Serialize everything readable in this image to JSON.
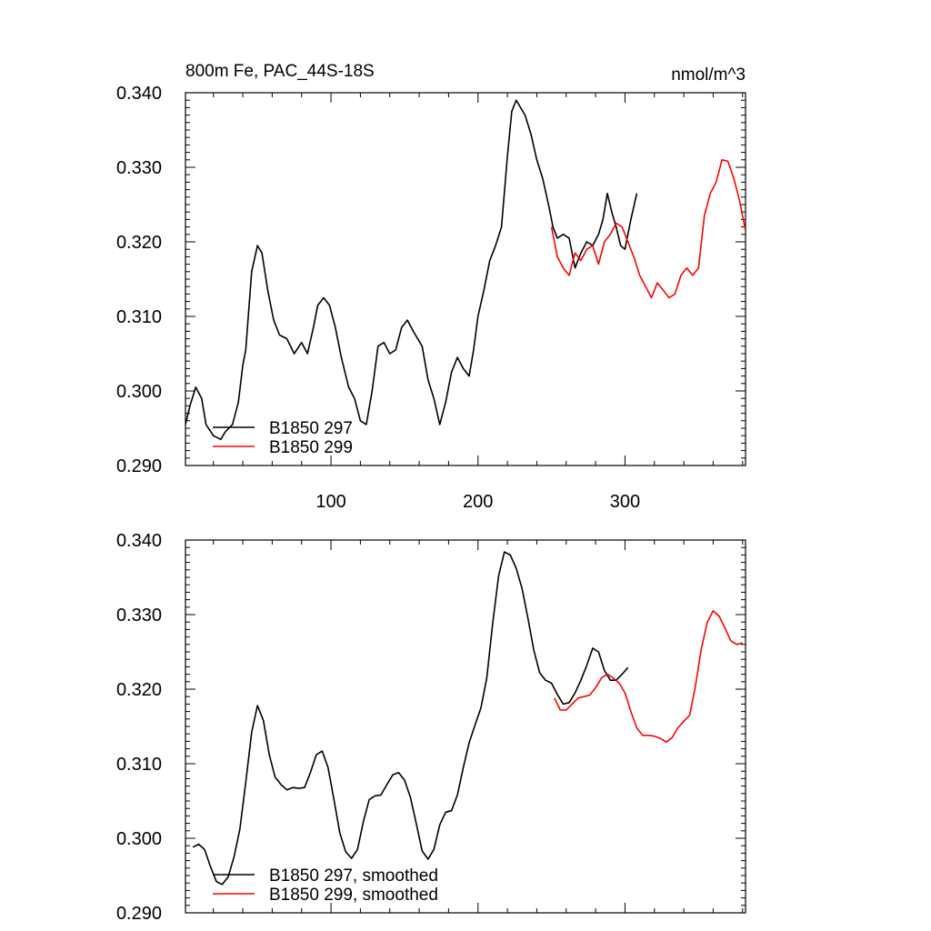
{
  "figure": {
    "title_left": "800m Fe, PAC_44S-18S",
    "title_right": "nmol/m^3",
    "colors": {
      "series_297": "#000000",
      "series_299": "#ff0000",
      "axis": "#000000",
      "background": "#ffffff"
    }
  },
  "chart_data": [
    {
      "type": "line",
      "title": "800m Fe, PAC_44S-18S",
      "units": "nmol/m^3",
      "xlim": [
        1,
        382
      ],
      "ylim": [
        0.29,
        0.34
      ],
      "x_ticks": [
        100,
        200,
        300
      ],
      "x_tick_labels": [
        "100",
        "200",
        "300"
      ],
      "y_ticks": [
        0.29,
        0.3,
        0.31,
        0.32,
        0.33,
        0.34
      ],
      "y_tick_labels": [
        "0.290",
        "0.300",
        "0.310",
        "0.320",
        "0.330",
        "0.340"
      ],
      "grid": false,
      "legend_position": "bottom-left",
      "series": [
        {
          "name": "B1850 297",
          "color": "#000000",
          "x": [
            1,
            4,
            8,
            12,
            15,
            20,
            25,
            28,
            33,
            37,
            40,
            42,
            46,
            50,
            53,
            57,
            61,
            65,
            70,
            75,
            80,
            84,
            88,
            91,
            95,
            99,
            103,
            107,
            112,
            116,
            120,
            124,
            128,
            132,
            136,
            140,
            144,
            148,
            152,
            156,
            162,
            166,
            170,
            174,
            178,
            182,
            186,
            190,
            194,
            197,
            200,
            204,
            208,
            212,
            216,
            220,
            223,
            226,
            229,
            232,
            236,
            240,
            244,
            248,
            251,
            254,
            258,
            262,
            266,
            270,
            274,
            278,
            282,
            285,
            288,
            291,
            294,
            297,
            300,
            304,
            308
          ],
          "values": [
            0.2955,
            0.298,
            0.3005,
            0.299,
            0.2955,
            0.294,
            0.2935,
            0.2945,
            0.2955,
            0.2985,
            0.3035,
            0.3055,
            0.316,
            0.3195,
            0.3185,
            0.3135,
            0.3095,
            0.3075,
            0.307,
            0.305,
            0.3065,
            0.305,
            0.3085,
            0.3115,
            0.3125,
            0.3115,
            0.3085,
            0.3045,
            0.3005,
            0.299,
            0.296,
            0.2955,
            0.3,
            0.306,
            0.3065,
            0.305,
            0.3055,
            0.3085,
            0.3095,
            0.308,
            0.306,
            0.3015,
            0.299,
            0.2955,
            0.2985,
            0.3025,
            0.3045,
            0.303,
            0.302,
            0.3055,
            0.31,
            0.3135,
            0.3175,
            0.3195,
            0.322,
            0.3315,
            0.3375,
            0.339,
            0.338,
            0.337,
            0.3345,
            0.331,
            0.3285,
            0.325,
            0.322,
            0.3205,
            0.321,
            0.3205,
            0.3165,
            0.3185,
            0.32,
            0.3195,
            0.321,
            0.323,
            0.3265,
            0.324,
            0.322,
            0.3195,
            0.319,
            0.323,
            0.3265
          ]
        },
        {
          "name": "B1850 299",
          "color": "#ff0000",
          "x": [
            250,
            254,
            258,
            262,
            266,
            270,
            274,
            278,
            282,
            286,
            290,
            294,
            298,
            302,
            306,
            310,
            314,
            318,
            322,
            326,
            330,
            334,
            338,
            342,
            346,
            350,
            354,
            358,
            362,
            366,
            370,
            374,
            378,
            382
          ],
          "values": [
            0.322,
            0.318,
            0.3165,
            0.3155,
            0.3185,
            0.3175,
            0.319,
            0.3195,
            0.317,
            0.32,
            0.321,
            0.3225,
            0.322,
            0.32,
            0.318,
            0.3155,
            0.314,
            0.3125,
            0.3145,
            0.3135,
            0.3125,
            0.313,
            0.3155,
            0.3165,
            0.3155,
            0.3165,
            0.3235,
            0.3265,
            0.328,
            0.331,
            0.3308,
            0.3285,
            0.3255,
            0.3215
          ]
        }
      ]
    },
    {
      "type": "line",
      "xlim": [
        1,
        382
      ],
      "ylim": [
        0.29,
        0.34
      ],
      "x_ticks": [
        100,
        200,
        300
      ],
      "y_ticks": [
        0.29,
        0.3,
        0.31,
        0.32,
        0.33,
        0.34
      ],
      "y_tick_labels": [
        "0.290",
        "0.300",
        "0.310",
        "0.320",
        "0.330",
        "0.340"
      ],
      "grid": false,
      "legend_position": "bottom-left",
      "series": [
        {
          "name": "B1850 297, smoothed",
          "color": "#000000",
          "x": [
            6,
            10,
            14,
            18,
            22,
            26,
            30,
            34,
            38,
            42,
            46,
            50,
            54,
            58,
            62,
            66,
            70,
            74,
            78,
            82,
            86,
            90,
            94,
            98,
            102,
            106,
            110,
            114,
            118,
            122,
            126,
            130,
            134,
            138,
            142,
            146,
            150,
            154,
            158,
            162,
            166,
            170,
            174,
            178,
            182,
            186,
            190,
            194,
            198,
            202,
            206,
            210,
            214,
            218,
            222,
            226,
            230,
            234,
            238,
            242,
            246,
            250,
            254,
            258,
            262,
            266,
            270,
            274,
            278,
            282,
            286,
            290,
            294,
            298,
            302
          ],
          "values": [
            0.2988,
            0.2992,
            0.2985,
            0.2962,
            0.2942,
            0.2938,
            0.2948,
            0.2975,
            0.3012,
            0.3075,
            0.3142,
            0.3178,
            0.3158,
            0.3112,
            0.3082,
            0.3072,
            0.3065,
            0.3068,
            0.3067,
            0.3068,
            0.3088,
            0.3112,
            0.3117,
            0.3095,
            0.3052,
            0.3007,
            0.2982,
            0.2973,
            0.2985,
            0.3022,
            0.3052,
            0.3057,
            0.3058,
            0.3072,
            0.3085,
            0.3088,
            0.3078,
            0.3055,
            0.302,
            0.2983,
            0.2972,
            0.2985,
            0.3018,
            0.3035,
            0.3037,
            0.3058,
            0.3095,
            0.3128,
            0.3152,
            0.3175,
            0.3215,
            0.3288,
            0.3352,
            0.3384,
            0.338,
            0.3362,
            0.3335,
            0.3295,
            0.3252,
            0.3222,
            0.3212,
            0.3208,
            0.3193,
            0.318,
            0.3182,
            0.3195,
            0.3212,
            0.3232,
            0.3255,
            0.325,
            0.3225,
            0.3212,
            0.3212,
            0.322,
            0.3229
          ]
        },
        {
          "name": "B1850 299, smoothed",
          "color": "#ff0000",
          "x": [
            252,
            256,
            260,
            264,
            268,
            272,
            276,
            280,
            284,
            288,
            292,
            296,
            300,
            304,
            308,
            312,
            316,
            320,
            324,
            328,
            332,
            336,
            340,
            344,
            348,
            352,
            356,
            360,
            364,
            368,
            372,
            376,
            380
          ],
          "values": [
            0.3188,
            0.3172,
            0.3172,
            0.318,
            0.3188,
            0.319,
            0.3192,
            0.3202,
            0.3215,
            0.322,
            0.3215,
            0.3208,
            0.3195,
            0.317,
            0.3148,
            0.3138,
            0.3138,
            0.3137,
            0.3134,
            0.3129,
            0.3135,
            0.3148,
            0.3157,
            0.3165,
            0.3205,
            0.3255,
            0.329,
            0.3305,
            0.3298,
            0.3282,
            0.3265,
            0.326,
            0.3262
          ]
        }
      ]
    }
  ],
  "legends": [
    {
      "items": [
        "B1850 297",
        "B1850 299"
      ]
    },
    {
      "items": [
        "B1850 297, smoothed",
        "B1850 299, smoothed"
      ]
    }
  ]
}
